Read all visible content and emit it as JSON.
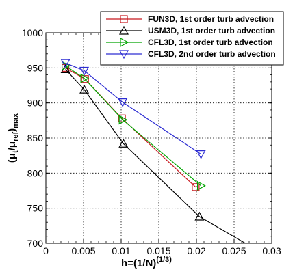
{
  "chart_data": {
    "type": "line",
    "xlabel": {
      "main": "h=(1/N)",
      "sup": "(1/3)"
    },
    "ylabel": {
      "open": "(μ",
      "t": "t",
      "slash": "/μ",
      "ref": "ref",
      "close": ")",
      "max": "max"
    },
    "xlim": [
      0,
      0.03
    ],
    "ylim": [
      700,
      1000
    ],
    "xticks": [
      0,
      0.005,
      0.01,
      0.015,
      0.02,
      0.025,
      0.03
    ],
    "xtick_labels": [
      "0",
      "0.005",
      "0.01",
      "0.015",
      "0.02",
      "0.025",
      "0.03"
    ],
    "yticks": [
      700,
      750,
      800,
      850,
      900,
      950,
      1000
    ],
    "ytick_labels": [
      "700",
      "750",
      "800",
      "850",
      "900",
      "950",
      "1000"
    ],
    "grid": true,
    "legend_position": "top-right",
    "series": [
      {
        "name": "FUN3D, 1st order turb advection",
        "color": "#c8181e",
        "marker": "square",
        "x": [
          0.0026,
          0.0052,
          0.0101,
          0.0199
        ],
        "y": [
          950,
          934,
          878,
          780
        ]
      },
      {
        "name": "USM3D, 1st order turb advection",
        "color": "#000000",
        "marker": "triangle-up",
        "x": [
          0.0026,
          0.0051,
          0.0103,
          0.0204,
          0.0265
        ],
        "y": [
          948,
          919,
          842,
          738,
          700
        ]
      },
      {
        "name": "CFL3D, 1st order turb advection",
        "color": "#00a500",
        "marker": "triangle-right",
        "x": [
          0.0026,
          0.0051,
          0.0102,
          0.0206
        ],
        "y": [
          953,
          935,
          876,
          782
        ]
      },
      {
        "name": "CFL3D, 2nd order turb advection",
        "color": "#2d2dd2",
        "marker": "triangle-down",
        "x": [
          0.0026,
          0.0051,
          0.0102,
          0.0206
        ],
        "y": [
          957,
          946,
          901,
          827
        ]
      }
    ]
  }
}
